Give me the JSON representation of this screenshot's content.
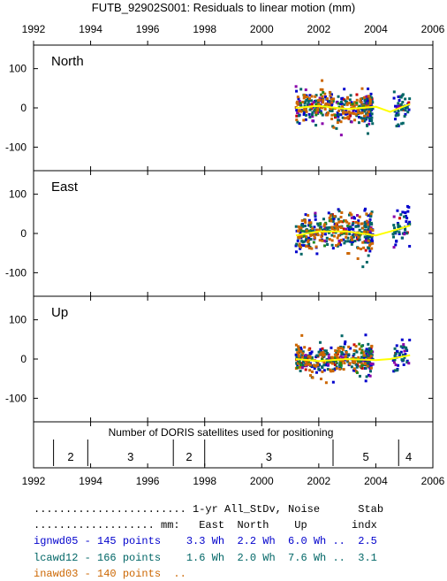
{
  "title": "FUTB_92902S001: Residuals to linear motion (mm)",
  "x_ticks": [
    "1992",
    "1994",
    "1996",
    "1998",
    "2000",
    "2002",
    "2004",
    "2006"
  ],
  "panels": [
    {
      "label": "North",
      "y_ticks": [
        "100",
        "0",
        "-100"
      ]
    },
    {
      "label": "East",
      "y_ticks": [
        "100",
        "0",
        "-100"
      ]
    },
    {
      "label": "Up",
      "y_ticks": [
        "100",
        "0",
        "-100"
      ]
    }
  ],
  "satellites": {
    "title": "Number of DORIS satellites used for positioning",
    "segments": [
      {
        "start": 1992.7,
        "end": 1993.9,
        "count": "2"
      },
      {
        "start": 1993.9,
        "end": 1996.9,
        "count": "3"
      },
      {
        "start": 1996.9,
        "end": 1998.0,
        "count": "2"
      },
      {
        "start": 1998.0,
        "end": 2002.5,
        "count": "3"
      },
      {
        "start": 2002.5,
        "end": 2004.8,
        "count": "5"
      },
      {
        "start": 2004.8,
        "end": 2005.5,
        "count": "4"
      }
    ]
  },
  "legend": {
    "header1": "........................ 1-yr All_StDv, Noise      Stab",
    "header2": "................... mm:   East  North    Up       indx",
    "rows": [
      {
        "text": "ignwd05 - 145 points    3.3 Wh  2.2 Wh  6.0 Wh ..  2.5",
        "color": "#0000cc"
      },
      {
        "text": "lcawd12 - 166 points    1.6 Wh  2.0 Wh  7.6 Wh ..  3.1",
        "color": "#006666"
      },
      {
        "text": "inawd03 - 140 points  ..",
        "color": "#cc6600"
      }
    ]
  },
  "chart_data": {
    "type": "scatter",
    "title": "FUTB_92902S001: Residuals to linear motion (mm)",
    "xlabel": "",
    "ylabel": "",
    "xlim": [
      1992,
      2006
    ],
    "ylim": [
      -160,
      160
    ],
    "grid": false,
    "colors": {
      "ignwd05": "#0000cc",
      "lcawd12": "#006666",
      "inawd03": "#cc6600",
      "smooth": "#ffff00",
      "other": "#cc0000"
    },
    "series": [
      {
        "name": "ignwd05",
        "count": 145,
        "span": [
          2001.2,
          2005.2
        ]
      },
      {
        "name": "lcawd12",
        "count": 166,
        "span": [
          2001.2,
          2005.2
        ]
      },
      {
        "name": "inawd03",
        "count": 140,
        "span": [
          2001.2,
          2003.9
        ]
      }
    ],
    "components": [
      {
        "name": "North",
        "spread": 20,
        "smooth": [
          [
            2001.2,
            0
          ],
          [
            2002.0,
            5
          ],
          [
            2003.0,
            -3
          ],
          [
            2004.0,
            3
          ],
          [
            2004.5,
            -10
          ],
          [
            2005.2,
            10
          ]
        ]
      },
      {
        "name": "East",
        "spread": 25,
        "smooth": [
          [
            2001.2,
            -5
          ],
          [
            2002.0,
            5
          ],
          [
            2003.0,
            5
          ],
          [
            2004.0,
            -5
          ],
          [
            2004.5,
            5
          ],
          [
            2005.2,
            20
          ]
        ]
      },
      {
        "name": "Up",
        "spread": 18,
        "smooth": [
          [
            2001.2,
            0
          ],
          [
            2002.0,
            -5
          ],
          [
            2003.0,
            0
          ],
          [
            2004.0,
            -3
          ],
          [
            2004.5,
            0
          ],
          [
            2005.2,
            10
          ]
        ]
      }
    ]
  }
}
